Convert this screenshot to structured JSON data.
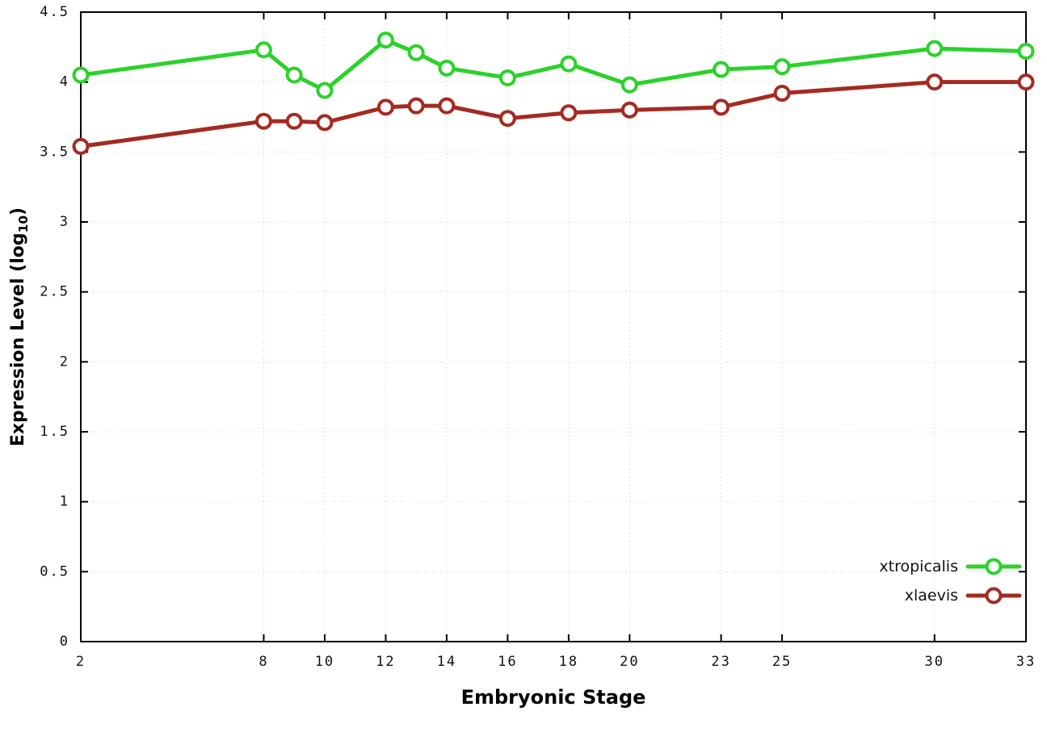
{
  "chart_data": {
    "type": "line",
    "title": "",
    "xlabel": "Embryonic Stage",
    "ylabel": "Expression Level (log10)",
    "ylabel_main": "Expression Level (log",
    "ylabel_sub": "10",
    "ylabel_close": ")",
    "xlim": [
      2,
      33
    ],
    "ylim": [
      0,
      4.5
    ],
    "xticks": [
      2,
      8,
      10,
      12,
      14,
      16,
      18,
      20,
      23,
      25,
      30,
      33
    ],
    "yticks": [
      0,
      0.5,
      1,
      1.5,
      2,
      2.5,
      3,
      3.5,
      4,
      4.5
    ],
    "grid": true,
    "legend_position": "bottom-right",
    "x": [
      2,
      8,
      9,
      10,
      12,
      13,
      14,
      16,
      18,
      20,
      23,
      25,
      30,
      33
    ],
    "series": [
      {
        "name": "xtropicalis",
        "color": "#2bd22b",
        "values": [
          4.05,
          4.23,
          4.05,
          3.94,
          4.3,
          4.21,
          4.1,
          4.03,
          4.13,
          3.98,
          4.09,
          4.11,
          4.24,
          4.22
        ]
      },
      {
        "name": "xlaevis",
        "color": "#a52a21",
        "values": [
          3.54,
          3.72,
          3.72,
          3.71,
          3.82,
          3.83,
          3.83,
          3.74,
          3.78,
          3.8,
          3.82,
          3.92,
          4.0,
          4.0
        ]
      }
    ]
  }
}
